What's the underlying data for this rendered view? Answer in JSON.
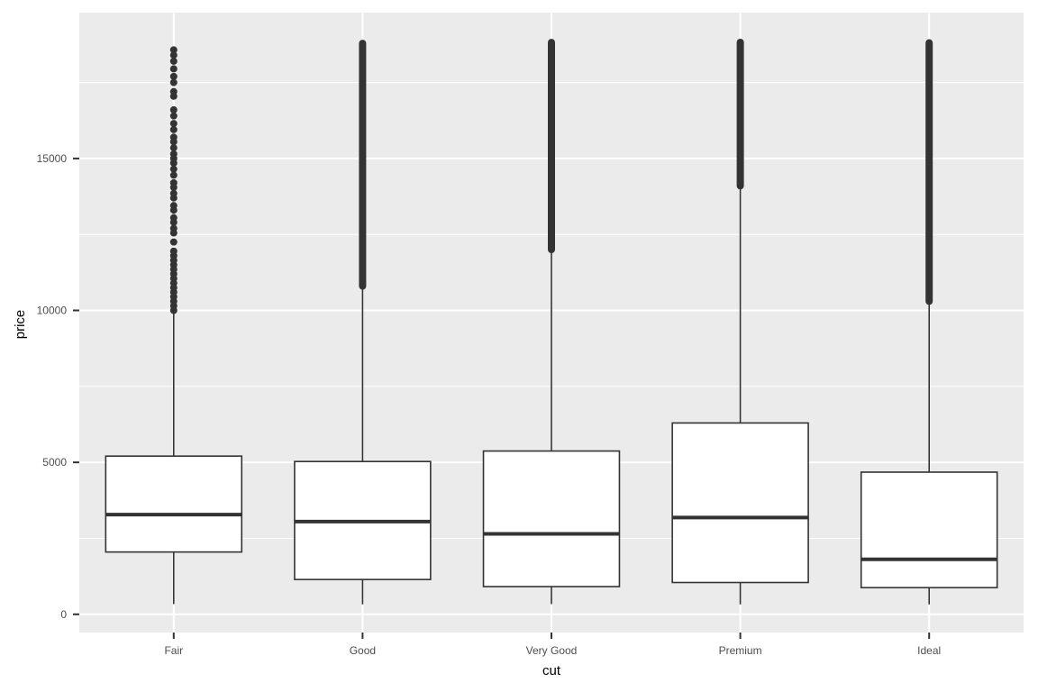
{
  "chart_data": {
    "type": "boxplot",
    "title": "",
    "xlabel": "cut",
    "ylabel": "price",
    "ylim": [
      -600,
      19800
    ],
    "y_ticks": [
      0,
      5000,
      10000,
      15000
    ],
    "y_tick_labels": [
      "0",
      "5000",
      "10000",
      "15000"
    ],
    "grid": true,
    "categories": [
      "Fair",
      "Good",
      "Very Good",
      "Premium",
      "Ideal"
    ],
    "boxes": [
      {
        "category": "Fair",
        "whisker_low": 337,
        "q1": 2050,
        "median": 3282,
        "q3": 5206,
        "whisker_high": 9938,
        "outliers": [
          10000,
          10150,
          10300,
          10450,
          10600,
          10750,
          10900,
          11050,
          11200,
          11350,
          11500,
          11650,
          11800,
          11950,
          12250,
          12550,
          12700,
          12900,
          13050,
          13300,
          13450,
          13700,
          13850,
          14050,
          14200,
          14450,
          14650,
          14850,
          15000,
          15150,
          15350,
          15550,
          15700,
          15950,
          16150,
          16400,
          16600,
          17050,
          17200,
          17500,
          17700,
          17950,
          18200,
          18400,
          18574
        ]
      },
      {
        "category": "Good",
        "whisker_low": 327,
        "q1": 1145,
        "median": 3050,
        "q3": 5028,
        "whisker_high": 10800,
        "outlier_range": [
          10800,
          18788
        ]
      },
      {
        "category": "Very Good",
        "whisker_low": 336,
        "q1": 912,
        "median": 2648,
        "q3": 5373,
        "whisker_high": 12000,
        "outlier_range": [
          12000,
          18818
        ]
      },
      {
        "category": "Premium",
        "whisker_low": 326,
        "q1": 1046,
        "median": 3185,
        "q3": 6296,
        "whisker_high": 14100,
        "outlier_range": [
          14100,
          18823
        ]
      },
      {
        "category": "Ideal",
        "whisker_low": 326,
        "q1": 878,
        "median": 1810,
        "q3": 4678,
        "whisker_high": 10300,
        "outlier_range": [
          10300,
          18806
        ]
      }
    ],
    "colors": {
      "panel": "#ebebeb",
      "grid": "#ffffff",
      "box_fill": "#ffffff",
      "box_line": "#333333",
      "outlier": "#333333"
    }
  }
}
